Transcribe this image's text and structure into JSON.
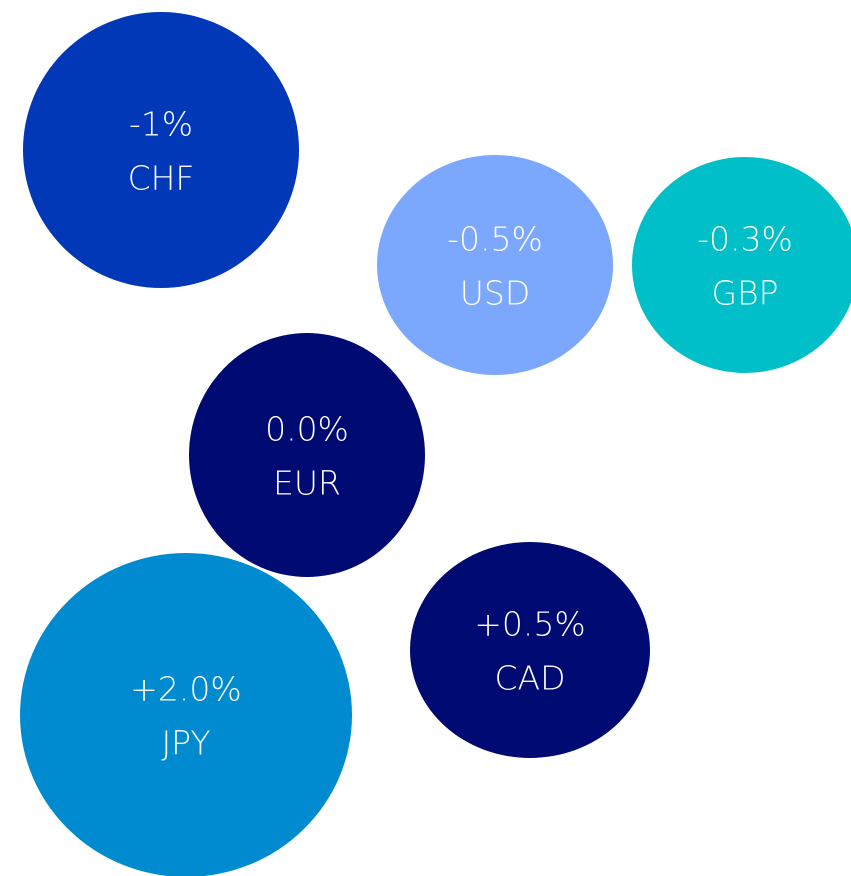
{
  "nodes": [
    {
      "change": "-1%",
      "currency": "CHF",
      "color": "#0038b8"
    },
    {
      "change": "-0.5%",
      "currency": "USD",
      "color": "#7ba7fc"
    },
    {
      "change": "-0.3%",
      "currency": "GBP",
      "color": "#00bfc8"
    },
    {
      "change": "0.0%",
      "currency": "EUR",
      "color": "#000a73"
    },
    {
      "change": "+0.5%",
      "currency": "CAD",
      "color": "#000a73"
    },
    {
      "change": "+2.0%",
      "currency": "JPY",
      "color": "#008bd1"
    }
  ]
}
